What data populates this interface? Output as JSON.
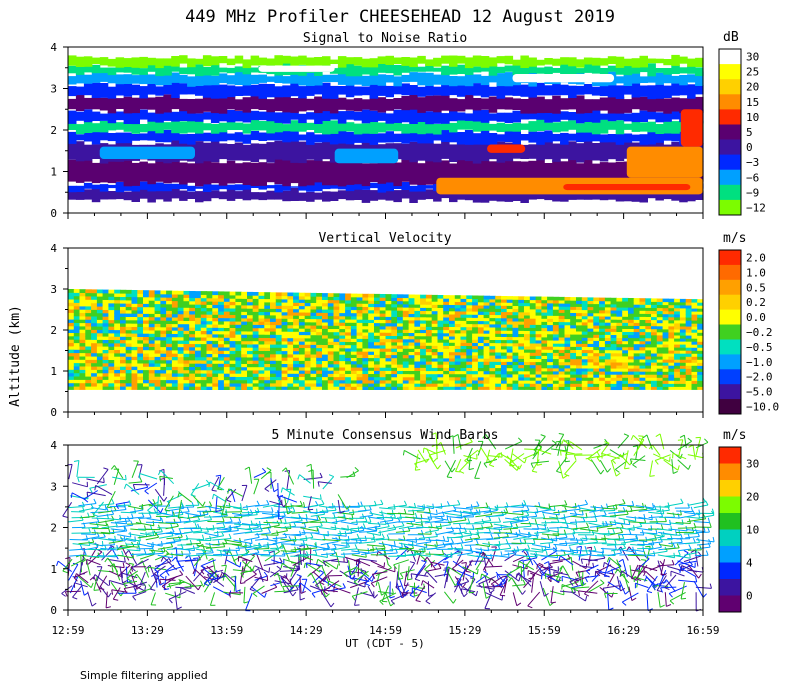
{
  "chart_data": {
    "title": "449 MHz Profiler CHEESEHEAD 12 August 2019",
    "ylabel": "Altitude (km)",
    "xlabel": "UT  (CDT - 5)",
    "x_ticks": [
      "12:59",
      "13:29",
      "13:59",
      "14:29",
      "14:59",
      "15:29",
      "15:59",
      "16:29",
      "16:59"
    ],
    "footnote": "Simple filtering applied",
    "panels": [
      {
        "type": "heatmap",
        "title": "Signal to Noise Ratio",
        "ylim": [
          0,
          4
        ],
        "y_ticks": [
          "0",
          "1",
          "2",
          "3",
          "4"
        ],
        "colorbar_unit": "dB",
        "colorbar_labels": [
          "30",
          "25",
          "20",
          "15",
          "10",
          "5",
          "0",
          "−3",
          "−6",
          "−9",
          "−12"
        ],
        "colors": [
          "#ffffff",
          "#ffff00",
          "#ffd000",
          "#ff8c00",
          "#ff2a00",
          "#5a0070",
          "#3c14a0",
          "#0028ff",
          "#00a0ff",
          "#00e080",
          "#7cfc00"
        ],
        "bands": [
          {
            "y0": 0.3,
            "y1": 0.55,
            "label": "0"
          },
          {
            "y0": 0.55,
            "y1": 0.7,
            "label": "−3"
          },
          {
            "y0": 0.7,
            "y1": 1.25,
            "label": "5"
          },
          {
            "y0": 1.25,
            "y1": 1.7,
            "label": "0"
          },
          {
            "y0": 1.7,
            "y1": 1.95,
            "label": "−3"
          },
          {
            "y0": 1.95,
            "y1": 2.2,
            "label": "−9"
          },
          {
            "y0": 2.2,
            "y1": 2.45,
            "label": "−3"
          },
          {
            "y0": 2.45,
            "y1": 2.8,
            "label": "5"
          },
          {
            "y0": 2.8,
            "y1": 3.1,
            "label": "−3"
          },
          {
            "y0": 3.1,
            "y1": 3.35,
            "label": "−6"
          },
          {
            "y0": 3.35,
            "y1": 3.55,
            "label": "−9"
          },
          {
            "y0": 3.55,
            "y1": 3.75,
            "label": "−12"
          }
        ],
        "patches": [
          {
            "t0": 0.58,
            "t1": 1.0,
            "y0": 0.45,
            "y1": 0.85,
            "label": "15"
          },
          {
            "t0": 0.78,
            "t1": 0.98,
            "y0": 0.55,
            "y1": 0.7,
            "label": "10"
          },
          {
            "t0": 0.88,
            "t1": 1.0,
            "y0": 0.85,
            "y1": 1.6,
            "label": "15"
          },
          {
            "t0": 0.965,
            "t1": 1.0,
            "y0": 1.6,
            "y1": 2.5,
            "label": "10"
          },
          {
            "t0": 0.66,
            "t1": 0.72,
            "y0": 1.45,
            "y1": 1.65,
            "label": "10"
          },
          {
            "t0": 0.05,
            "t1": 0.2,
            "y0": 1.3,
            "y1": 1.6,
            "label": "−6"
          },
          {
            "t0": 0.42,
            "t1": 0.52,
            "y0": 1.2,
            "y1": 1.55,
            "label": "−6"
          },
          {
            "t0": 0.7,
            "t1": 0.86,
            "y0": 3.15,
            "y1": 3.35,
            "label": "30"
          },
          {
            "t0": 0.3,
            "t1": 0.42,
            "y0": 3.4,
            "y1": 3.55,
            "label": "30"
          }
        ]
      },
      {
        "type": "heatmap",
        "title": "Vertical Velocity",
        "ylim": [
          0,
          4
        ],
        "y_ticks": [
          "0",
          "1",
          "2",
          "3",
          "4"
        ],
        "colorbar_unit": "m/s",
        "colorbar_labels": [
          "2.0",
          "1.0",
          "0.5",
          "0.2",
          "0.0",
          "−0.2",
          "−0.5",
          "−1.0",
          "−2.0",
          "−5.0",
          "−10.0"
        ],
        "colors": [
          "#ff2a00",
          "#ff6a00",
          "#ffa000",
          "#ffd000",
          "#ffff00",
          "#40d020",
          "#00e0c0",
          "#00a0ff",
          "#0040ff",
          "#3c14a0",
          "#400040"
        ],
        "data_range": {
          "y0": 0.55,
          "y1_start": 3.0,
          "y1_end": 2.75
        }
      },
      {
        "type": "scatter",
        "title": "5 Minute Consensus Wind Barbs",
        "ylim": [
          0,
          4
        ],
        "y_ticks": [
          "0",
          "1",
          "2",
          "3",
          "4"
        ],
        "colorbar_unit": "m/s",
        "colorbar_labels": [
          "30",
          "20",
          "10",
          "4",
          "0"
        ],
        "colors": [
          "#ff2a00",
          "#ff8c00",
          "#ffd000",
          "#7cfc00",
          "#20c020",
          "#00d0c0",
          "#00a0ff",
          "#0028ff",
          "#3c14a0",
          "#600070"
        ],
        "layers": [
          {
            "y0": 0.4,
            "y1": 1.3,
            "t0": 0.0,
            "t1": 1.0,
            "speed": "low"
          },
          {
            "y0": 1.3,
            "y1": 2.6,
            "t0": 0.0,
            "t1": 1.0,
            "speed": "mid"
          },
          {
            "y0": 2.6,
            "y1": 3.3,
            "t0": 0.0,
            "t1": 0.45,
            "speed": "mixed"
          },
          {
            "y0": 3.6,
            "y1": 4.0,
            "t0": 0.55,
            "t1": 1.0,
            "speed": "high"
          }
        ]
      }
    ]
  }
}
